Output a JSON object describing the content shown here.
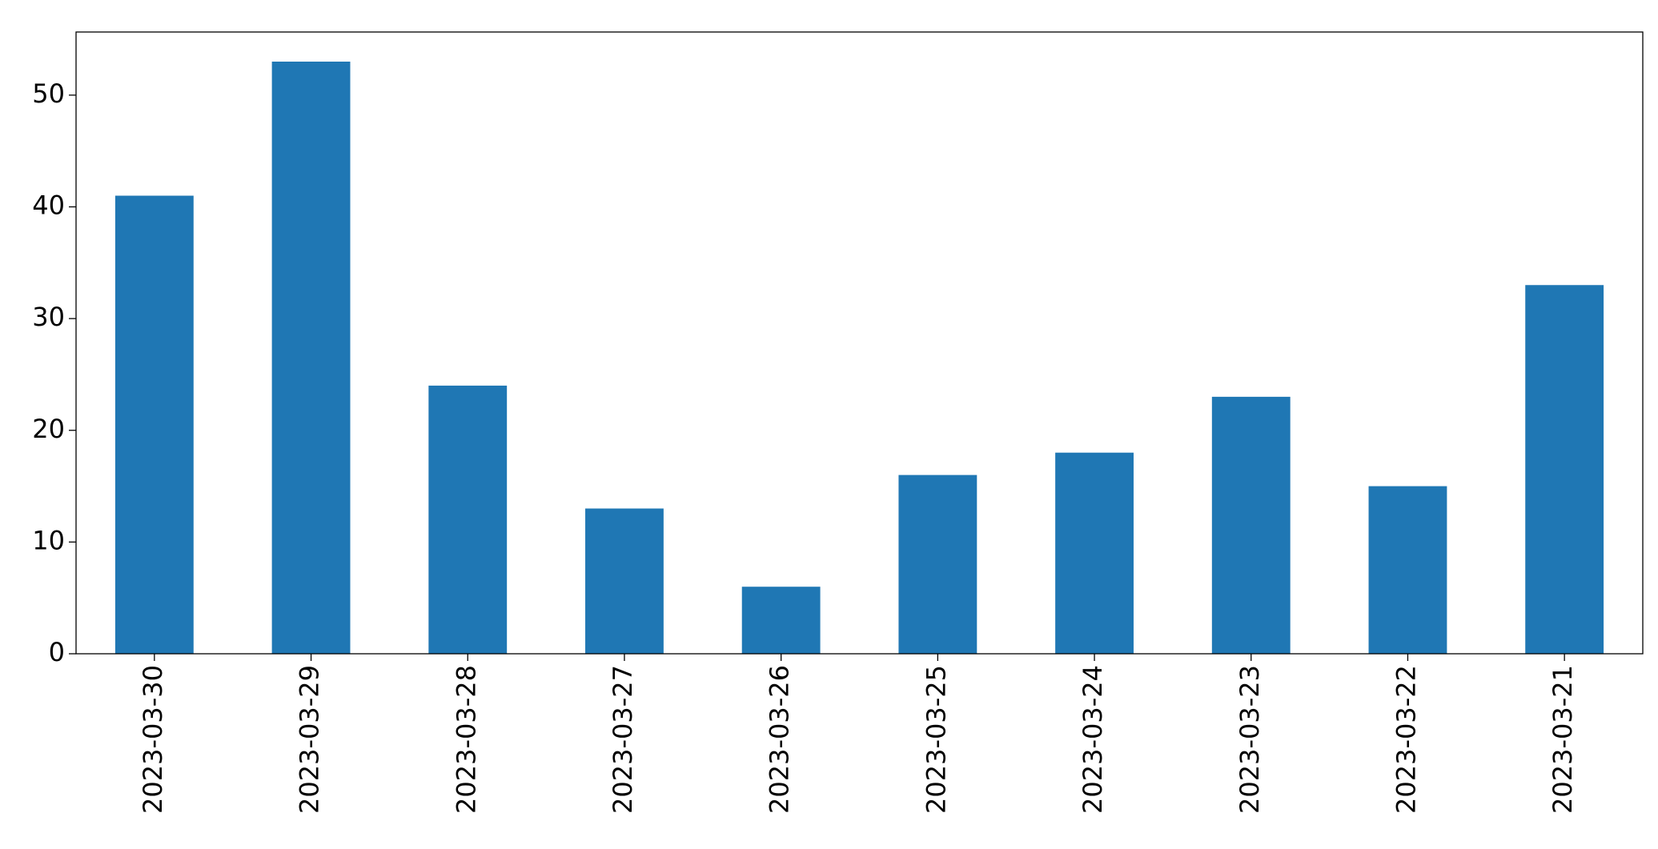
{
  "chart_data": {
    "type": "bar",
    "categories": [
      "2023-03-30",
      "2023-03-29",
      "2023-03-28",
      "2023-03-27",
      "2023-03-26",
      "2023-03-25",
      "2023-03-24",
      "2023-03-23",
      "2023-03-22",
      "2023-03-21"
    ],
    "values": [
      41,
      53,
      24,
      13,
      6,
      16,
      18,
      23,
      15,
      33
    ],
    "color": "#1f77b4",
    "ylim": [
      0,
      55.65
    ],
    "yticks": [
      0,
      10,
      20,
      30,
      40,
      50
    ],
    "grid": false
  }
}
